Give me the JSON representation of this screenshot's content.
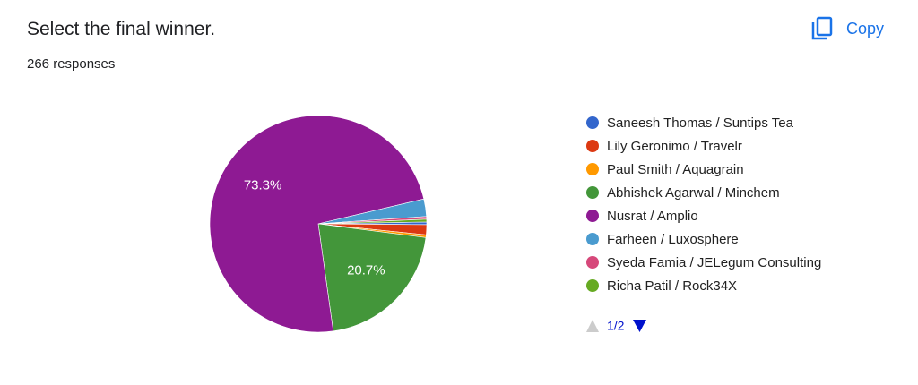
{
  "header": {
    "title": "Select the final winner.",
    "responses": "266 responses",
    "copy": "Copy"
  },
  "chart_data": {
    "type": "pie",
    "categories": [
      "Saneesh Thomas / Suntips Tea",
      "Lily Geronimo / Travelr",
      "Paul Smith / Aquagrain",
      "Abhishek Agarwal / Minchem",
      "Nusrat / Amplio",
      "Farheen / Luxosphere",
      "Syeda Famia / JELegum Consulting",
      "Richa Patil / Rock34X"
    ],
    "values": [
      0.4,
      1.5,
      0.4,
      20.7,
      73.3,
      2.6,
      0.4,
      0.4
    ],
    "value_labels": [
      null,
      null,
      null,
      "20.7%",
      "73.3%",
      null,
      null,
      null
    ],
    "colors": [
      "#3366cc",
      "#dc3912",
      "#ff9900",
      "#43963a",
      "#8e1a93",
      "#4a9bcf",
      "#d6487a",
      "#66aa22"
    ],
    "legend": "right"
  },
  "pagination": {
    "label": "1/2"
  }
}
